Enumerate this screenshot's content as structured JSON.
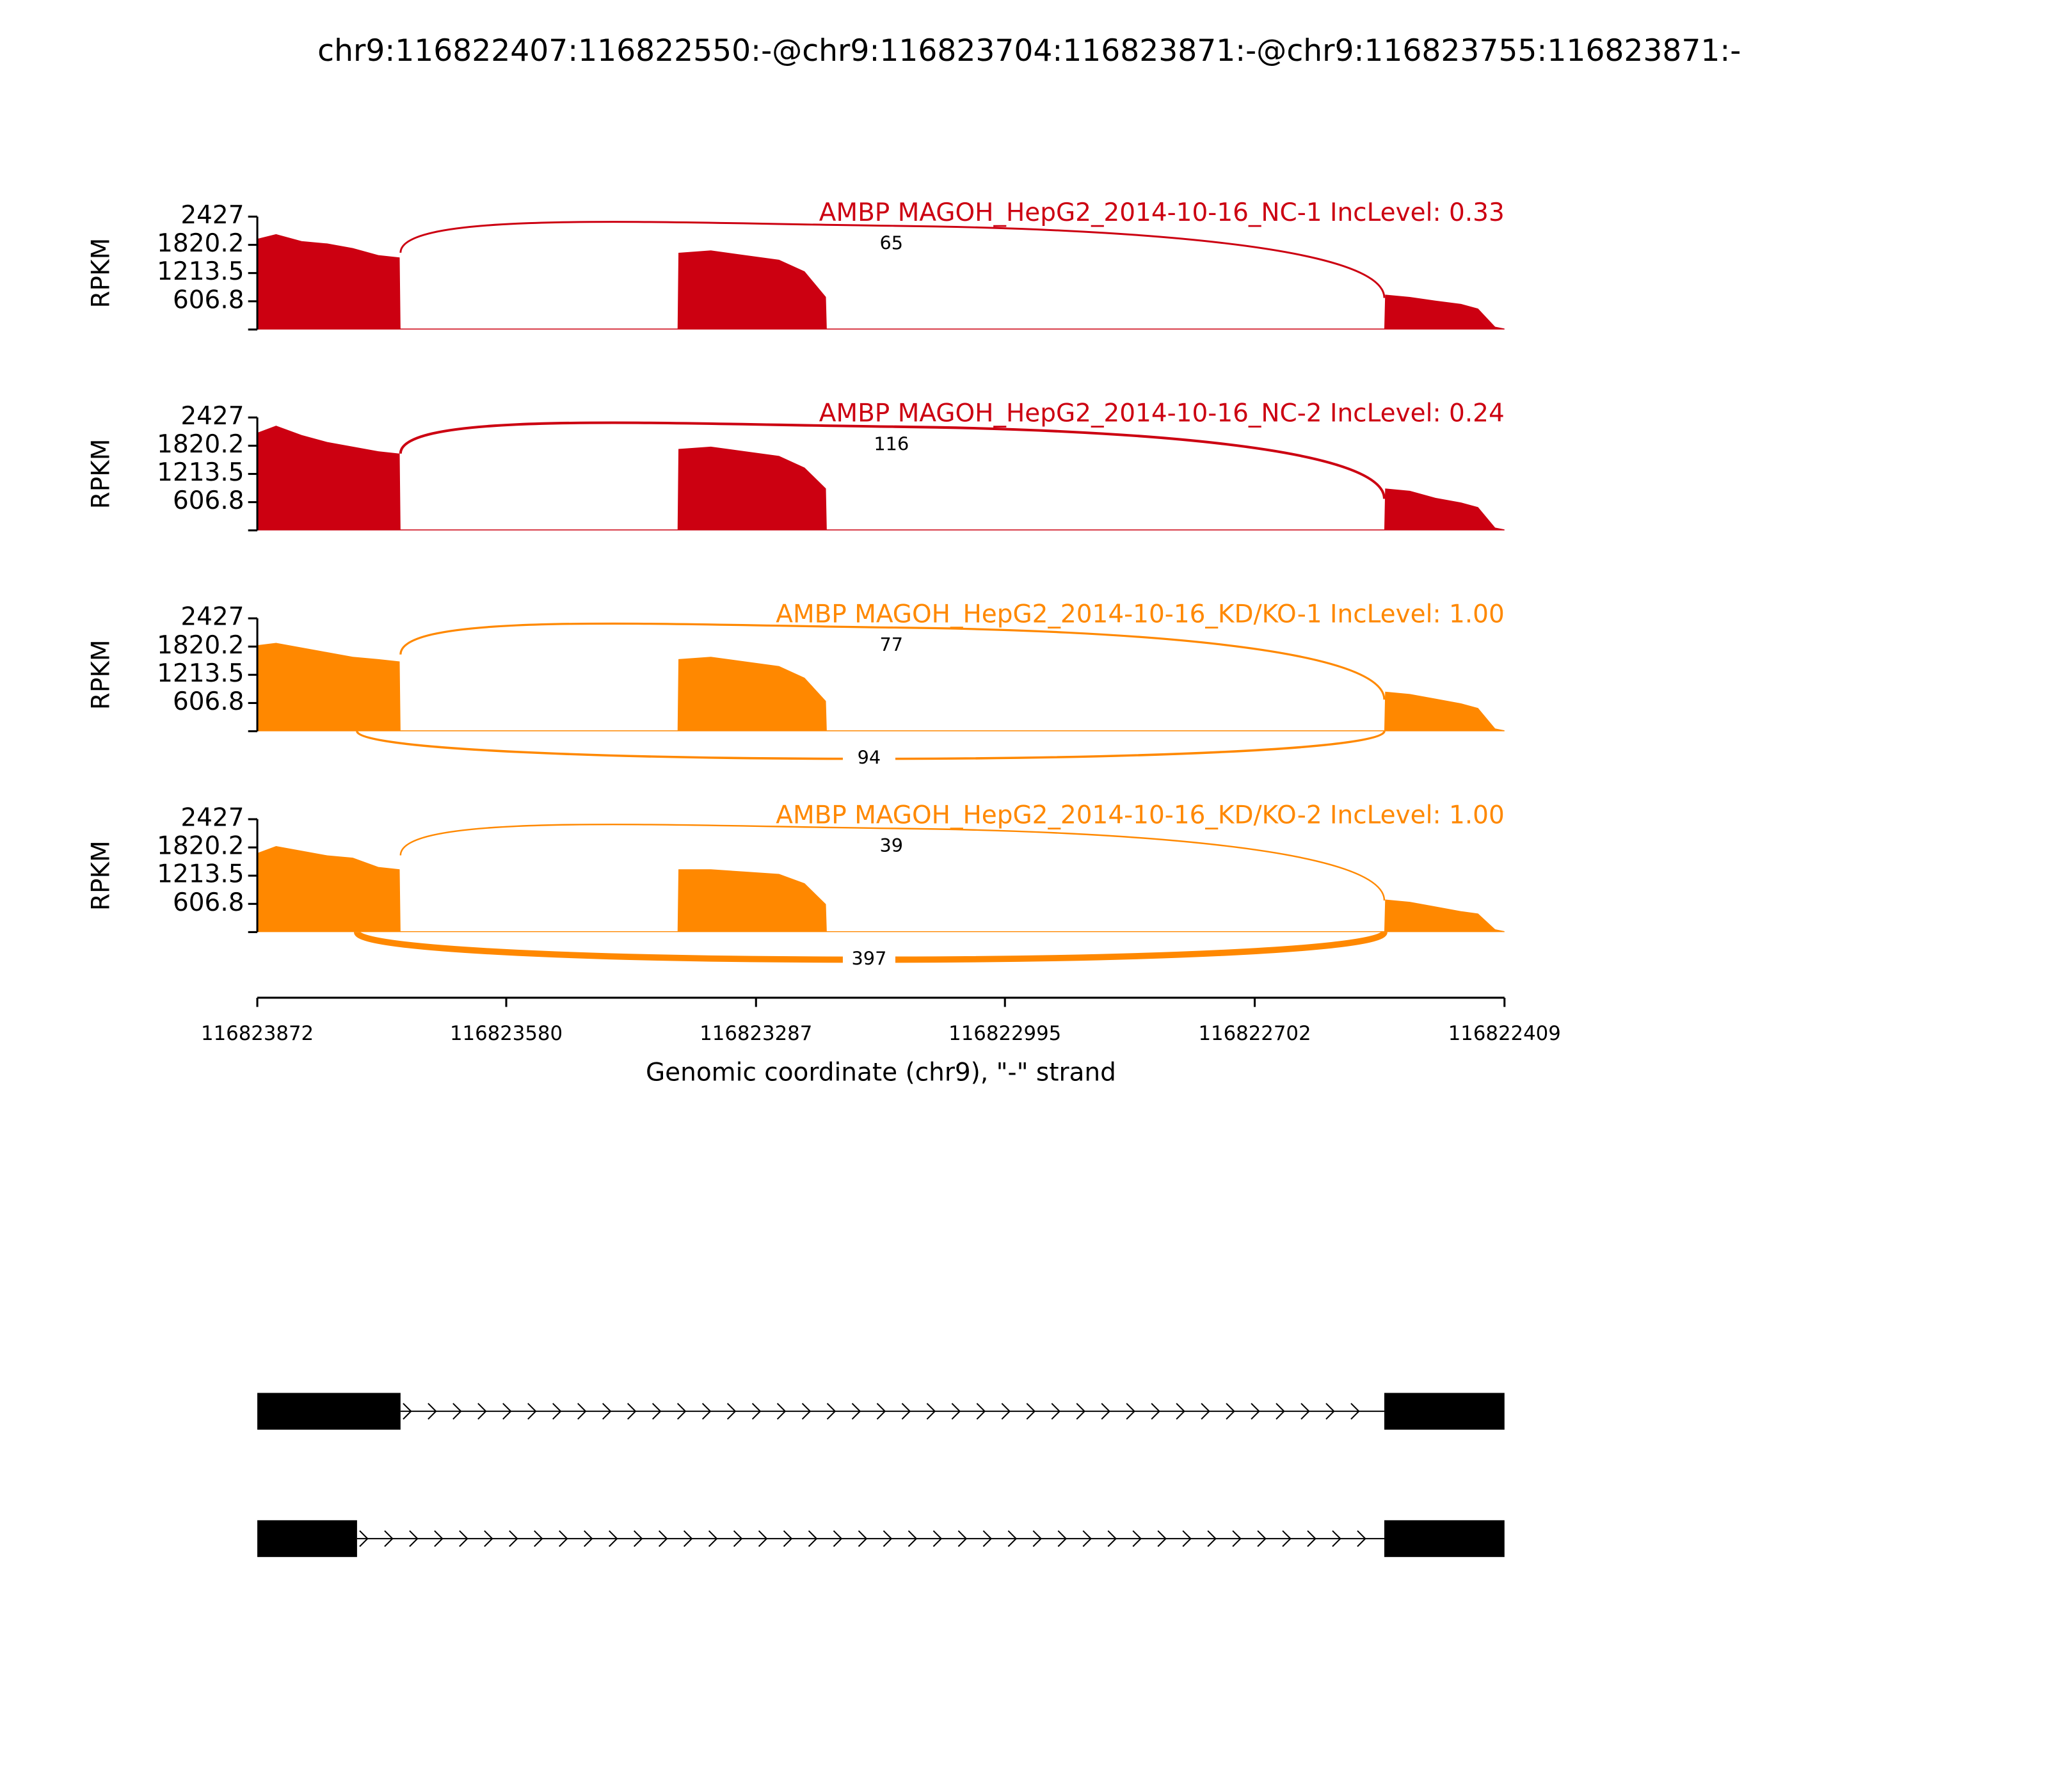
{
  "chart_data": {
    "type": "sashimi",
    "title": "chr9:116822407:116822550:-@chr9:116823704:116823871:-@chr9:116823755:116823871:-",
    "xlabel": "Genomic coordinate (chr9), \"-\" strand",
    "xlim": [
      116823872,
      116822409
    ],
    "xticks": [
      116823872,
      116823580,
      116823287,
      116822995,
      116822702,
      116822409
    ],
    "x": [
      116823872,
      116823850,
      116823820,
      116823790,
      116823760,
      116823730,
      116823705,
      116823704,
      116823379,
      116823378,
      116823340,
      116823300,
      116823260,
      116823230,
      116823205,
      116823204,
      116822550,
      116822549,
      116822520,
      116822490,
      116822460,
      116822440,
      116822420,
      116822409
    ],
    "panels": [
      {
        "label": "AMBP MAGOH_HepG2_2014-10-16_NC-1 IncLevel: 0.33",
        "color": "#cc0011",
        "ylabel": "RPKM",
        "ylim": [
          0,
          2427
        ],
        "yticks": [
          606.8,
          1213.5,
          1820.2,
          2427
        ],
        "values": [
          1950,
          2050,
          1900,
          1850,
          1750,
          1600,
          1550,
          20,
          20,
          1650,
          1700,
          1600,
          1500,
          1250,
          700,
          20,
          20,
          750,
          700,
          620,
          550,
          450,
          60,
          20
        ],
        "junctions": [
          {
            "start": 116823704,
            "end": 116822550,
            "count": 65
          }
        ]
      },
      {
        "label": "AMBP MAGOH_HepG2_2014-10-16_NC-2 IncLevel: 0.24",
        "color": "#cc0011",
        "ylabel": "RPKM",
        "ylim": [
          0,
          2427
        ],
        "yticks": [
          606.8,
          1213.5,
          1820.2,
          2427
        ],
        "values": [
          2100,
          2250,
          2050,
          1900,
          1800,
          1700,
          1650,
          20,
          20,
          1750,
          1800,
          1700,
          1600,
          1350,
          900,
          20,
          20,
          900,
          850,
          700,
          600,
          500,
          60,
          20
        ],
        "junctions": [
          {
            "start": 116823704,
            "end": 116822550,
            "count": 116
          }
        ]
      },
      {
        "label": "AMBP MAGOH_HepG2_2014-10-16_KD/KO-1 IncLevel: 1.00",
        "color": "#ff8800",
        "ylabel": "RPKM",
        "ylim": [
          0,
          2427
        ],
        "yticks": [
          606.8,
          1213.5,
          1820.2,
          2427
        ],
        "values": [
          1850,
          1900,
          1800,
          1700,
          1600,
          1550,
          1500,
          20,
          20,
          1550,
          1600,
          1500,
          1400,
          1150,
          650,
          20,
          20,
          850,
          800,
          700,
          600,
          500,
          60,
          20
        ],
        "junctions": [
          {
            "start": 116823704,
            "end": 116822550,
            "count": 77
          },
          {
            "start": 116823755,
            "end": 116822550,
            "count": 94
          }
        ]
      },
      {
        "label": "AMBP MAGOH_HepG2_2014-10-16_KD/KO-2 IncLevel: 1.00",
        "color": "#ff8800",
        "ylabel": "RPKM",
        "ylim": [
          0,
          2427
        ],
        "yticks": [
          606.8,
          1213.5,
          1820.2,
          2427
        ],
        "values": [
          1700,
          1850,
          1750,
          1650,
          1600,
          1400,
          1350,
          20,
          20,
          1350,
          1350,
          1300,
          1250,
          1050,
          600,
          20,
          20,
          700,
          650,
          550,
          450,
          400,
          60,
          20
        ],
        "junctions": [
          {
            "start": 116823704,
            "end": 116822550,
            "count": 39
          },
          {
            "start": 116823755,
            "end": 116822550,
            "count": 397
          }
        ]
      }
    ],
    "transcripts": [
      {
        "exons": [
          [
            116823872,
            116823704
          ],
          [
            116822550,
            116822409
          ]
        ]
      },
      {
        "exons": [
          [
            116823872,
            116823755
          ],
          [
            116822550,
            116822409
          ]
        ]
      }
    ]
  }
}
